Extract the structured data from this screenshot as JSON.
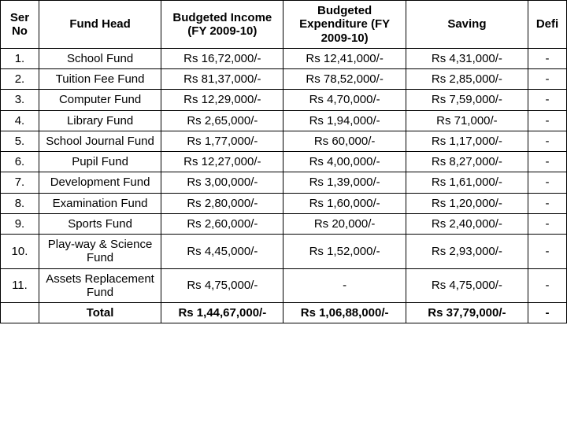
{
  "headers": {
    "ser": "Ser No",
    "fund": "Fund Head",
    "income": "Budgeted Income (FY 2009-10)",
    "exp": "Budgeted Expenditure (FY 2009-10)",
    "sav": "Saving",
    "defi": "Defi"
  },
  "rows": [
    {
      "n": "1.",
      "f": "School Fund",
      "i": "Rs 16,72,000/-",
      "e": "Rs 12,41,000/-",
      "s": "Rs 4,31,000/-",
      "d": "-"
    },
    {
      "n": "2.",
      "f": "Tuition Fee Fund",
      "i": "Rs 81,37,000/-",
      "e": "Rs 78,52,000/-",
      "s": "Rs 2,85,000/-",
      "d": "-"
    },
    {
      "n": "3.",
      "f": "Computer Fund",
      "i": "Rs  12,29,000/-",
      "e": "Rs   4,70,000/-",
      "s": "Rs 7,59,000/-",
      "d": "-"
    },
    {
      "n": "4.",
      "f": "Library Fund",
      "i": "Rs  2,65,000/-",
      "e": "Rs  1,94,000/-",
      "s": "Rs    71,000/-",
      "d": "-"
    },
    {
      "n": "5.",
      "f": "School Journal Fund",
      "i": "Rs  1,77,000/-",
      "e": "Rs      60,000/-",
      "s": "Rs  1,17,000/-",
      "d": "-"
    },
    {
      "n": "6.",
      "f": "Pupil Fund",
      "i": "Rs 12,27,000/-",
      "e": "Rs  4,00,000/-",
      "s": "Rs  8,27,000/-",
      "d": "-"
    },
    {
      "n": "7.",
      "f": "Development Fund",
      "i": "Rs 3,00,000/-",
      "e": "Rs  1,39,000/-",
      "s": "Rs 1,61,000/-",
      "d": "-"
    },
    {
      "n": "8.",
      "f": "Examination Fund",
      "i": "Rs  2,80,000/-",
      "e": "Rs  1,60,000/-",
      "s": "Rs 1,20,000/-",
      "d": "-"
    },
    {
      "n": "9.",
      "f": "Sports Fund",
      "i": "Rs  2,60,000/-",
      "e": "Rs     20,000/-",
      "s": "Rs 2,40,000/-",
      "d": "-"
    },
    {
      "n": "10.",
      "f": "Play-way & Science Fund",
      "i": "Rs  4,45,000/-",
      "e": "Rs  1,52,000/-",
      "s": "Rs 2,93,000/-",
      "d": "-"
    },
    {
      "n": "11.",
      "f": "Assets Replacement Fund",
      "i": "Rs  4,75,000/-",
      "e": "-",
      "s": "Rs 4,75,000/-",
      "d": "-"
    }
  ],
  "total": {
    "f": "Total",
    "i": "Rs 1,44,67,000/-",
    "e": "Rs 1,06,88,000/-",
    "s": "Rs 37,79,000/-",
    "d": "-"
  }
}
